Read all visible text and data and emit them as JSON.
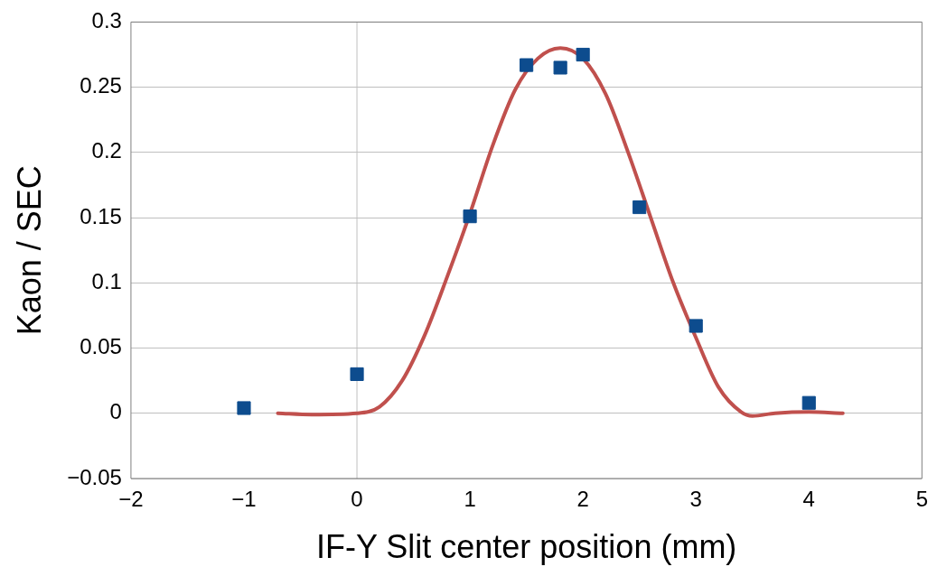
{
  "chart_data": {
    "type": "scatter",
    "xlabel": "IF-Y Slit center position (mm)",
    "ylabel": "Kaon / SEC",
    "xlim": [
      -2,
      5
    ],
    "xticks": [
      {
        "value": -2,
        "label": "−2"
      },
      {
        "value": -1,
        "label": "−1"
      },
      0,
      1,
      2,
      3,
      4,
      5
    ],
    "ylim": [
      -0.05,
      0.3
    ],
    "yticks": [
      {
        "value": -0.05,
        "label": "−0.05"
      },
      0,
      0.05,
      0.1,
      0.15,
      0.2,
      0.25,
      0.3
    ],
    "grid": "y",
    "legend": false,
    "ref_lines": [
      {
        "axis": "x",
        "value": 0,
        "color": "#bfbfbf"
      }
    ],
    "series": [
      {
        "type": "line",
        "color": "#c0504d",
        "marker": "none",
        "line_style": "solid",
        "x": [
          -0.7,
          -0.4,
          0,
          0.2,
          0.4,
          0.6,
          0.8,
          1.0,
          1.2,
          1.4,
          1.6,
          1.8,
          2.0,
          2.2,
          2.4,
          2.6,
          2.8,
          3.0,
          3.2,
          3.4,
          3.5,
          3.7,
          4.0,
          4.3
        ],
        "values": [
          0,
          -0.001,
          0,
          0.005,
          0.025,
          0.06,
          0.105,
          0.153,
          0.205,
          0.248,
          0.272,
          0.28,
          0.272,
          0.245,
          0.2,
          0.15,
          0.1,
          0.058,
          0.02,
          0.001,
          -0.002,
          0,
          0.001,
          0
        ]
      },
      {
        "type": "scatter",
        "color": "#0d4c8e",
        "marker": "square",
        "x": [
          -1,
          0,
          1,
          1.5,
          1.8,
          2,
          2.5,
          3,
          4
        ],
        "values": [
          0.004,
          0.03,
          0.151,
          0.267,
          0.265,
          0.275,
          0.158,
          0.067,
          0.008
        ]
      }
    ]
  }
}
